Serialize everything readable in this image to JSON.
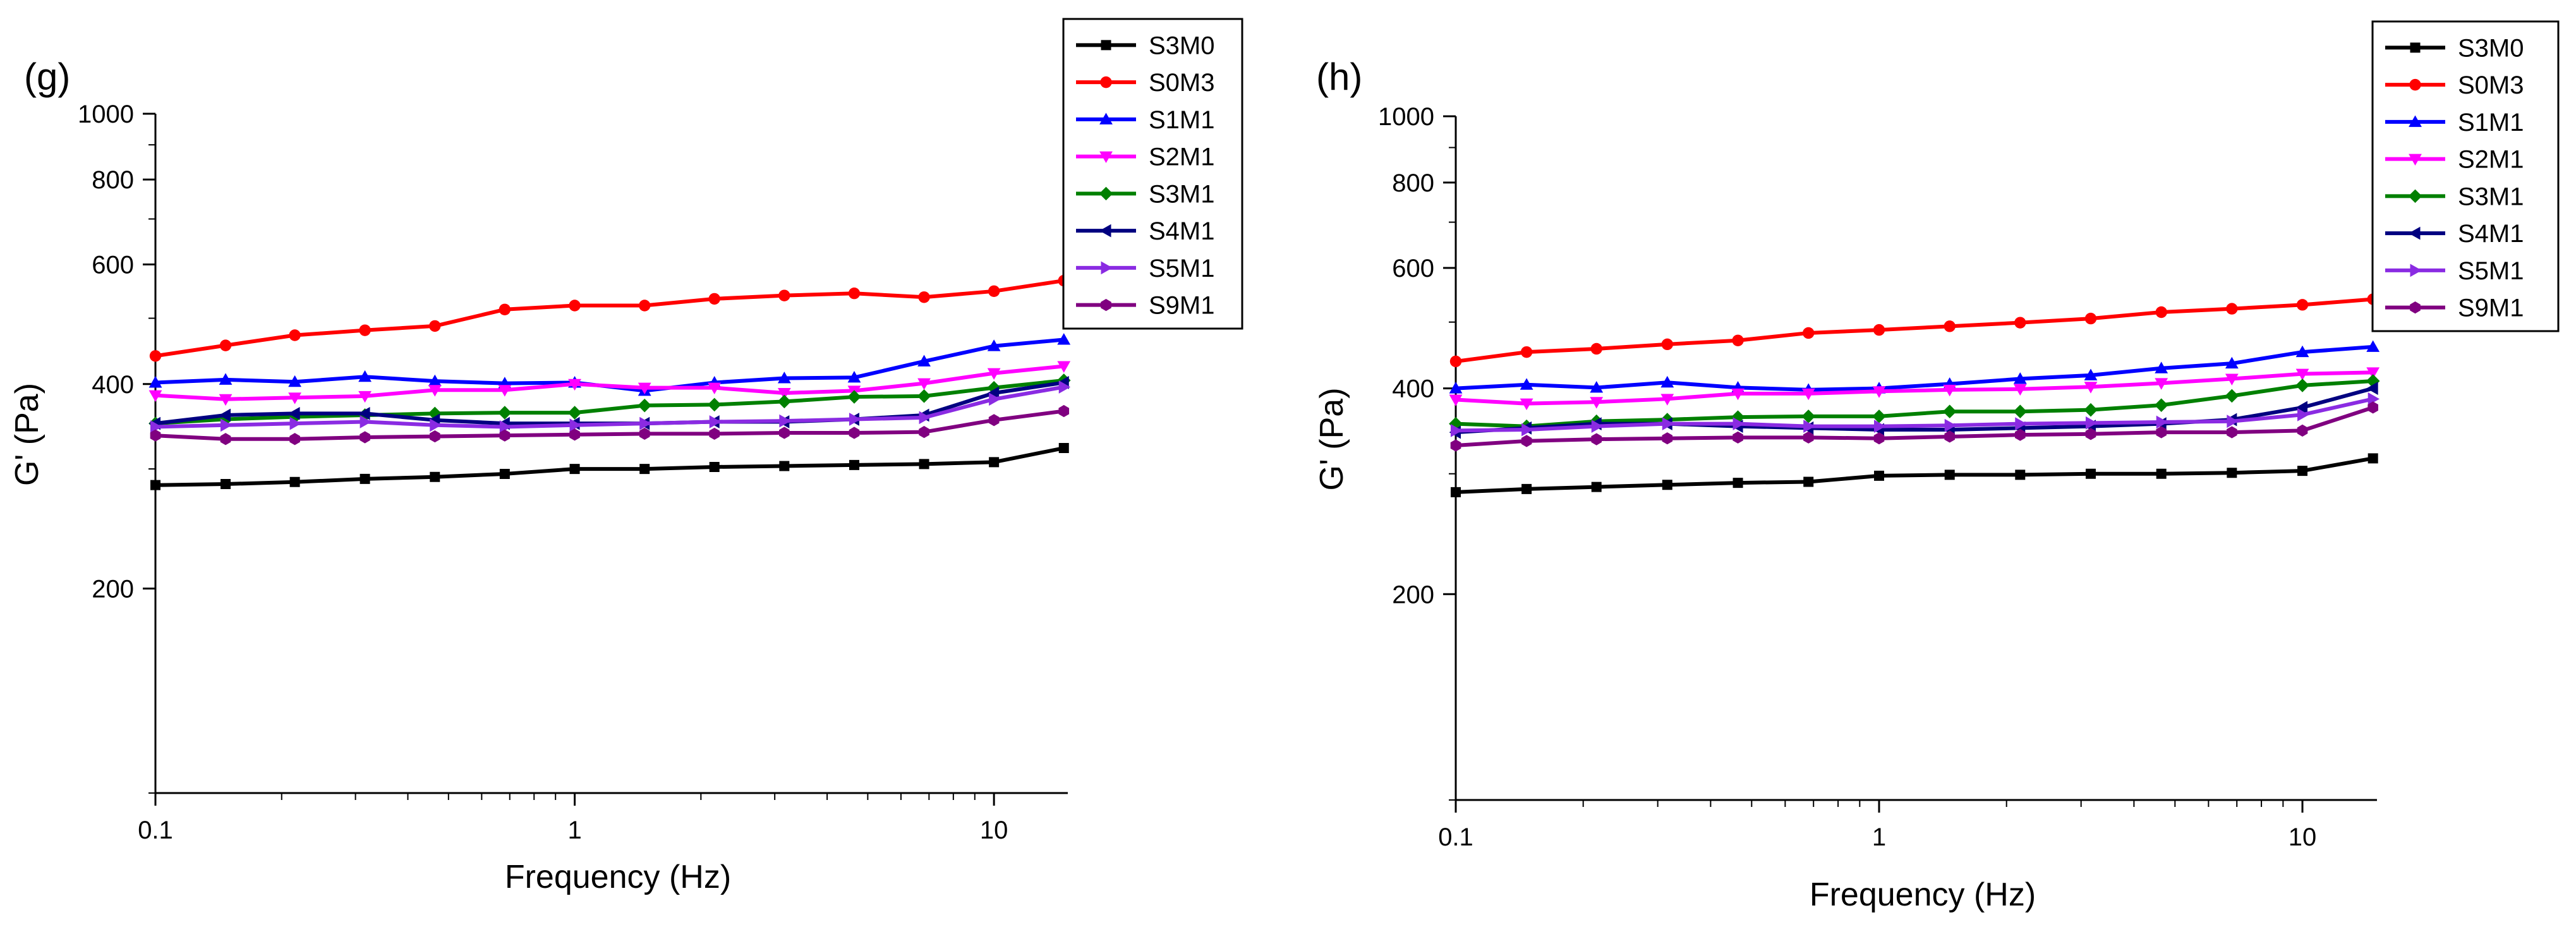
{
  "chart_data": [
    {
      "type": "line",
      "panel_label": "(g)",
      "xlabel": "Frequency (Hz)",
      "ylabel": "G' (Pa)",
      "xscale": "log",
      "yscale": "log",
      "xlim": [
        0.1,
        15
      ],
      "ylim": [
        100,
        1000
      ],
      "x_ticks": [
        {
          "value": 0.1,
          "label": "0.1"
        },
        {
          "value": 1,
          "label": "1"
        },
        {
          "value": 10,
          "label": "10"
        }
      ],
      "y_ticks": [
        {
          "value": 200,
          "label": "200"
        },
        {
          "value": 400,
          "label": "400"
        },
        {
          "value": 600,
          "label": "600"
        },
        {
          "value": 800,
          "label": "800"
        },
        {
          "value": 1000,
          "label": "1000"
        }
      ],
      "legend_position": "top-right",
      "x": [
        0.1,
        0.147,
        0.215,
        0.316,
        0.464,
        0.681,
        1.0,
        1.468,
        2.154,
        3.162,
        4.642,
        6.813,
        10.0,
        14.678
      ],
      "series": [
        {
          "name": "S3M0",
          "color": "#000000",
          "marker": "square",
          "values": [
            284,
            285,
            287,
            290,
            292,
            295,
            300,
            300,
            302,
            303,
            304,
            305,
            307,
            322
          ]
        },
        {
          "name": "S0M3",
          "color": "#ff0000",
          "marker": "circle",
          "values": [
            440,
            456,
            472,
            480,
            487,
            515,
            522,
            522,
            534,
            540,
            544,
            537,
            548,
            568
          ]
        },
        {
          "name": "S1M1",
          "color": "#0000ff",
          "marker": "triangle-up",
          "values": [
            402,
            406,
            403,
            410,
            404,
            401,
            402,
            391,
            402,
            408,
            409,
            432,
            455,
            465
          ]
        },
        {
          "name": "S2M1",
          "color": "#ff00ff",
          "marker": "triangle-down",
          "values": [
            385,
            380,
            382,
            384,
            392,
            392,
            400,
            395,
            395,
            388,
            391,
            401,
            415,
            425
          ]
        },
        {
          "name": "S3M1",
          "color": "#008000",
          "marker": "diamond",
          "values": [
            350,
            355,
            358,
            360,
            362,
            363,
            363,
            372,
            373,
            377,
            383,
            384,
            395,
            405
          ]
        },
        {
          "name": "S4M1",
          "color": "#000080",
          "marker": "triangle-left",
          "values": [
            350,
            360,
            362,
            362,
            354,
            350,
            350,
            350,
            352,
            352,
            355,
            360,
            388,
            402
          ]
        },
        {
          "name": "S5M1",
          "color": "#8a2be2",
          "marker": "triangle-right",
          "values": [
            346,
            348,
            350,
            352,
            348,
            346,
            348,
            350,
            352,
            353,
            355,
            357,
            380,
            396
          ]
        },
        {
          "name": "S9M1",
          "color": "#800080",
          "marker": "hexagon",
          "values": [
            336,
            332,
            332,
            334,
            335,
            336,
            337,
            338,
            338,
            339,
            339,
            340,
            354,
            365
          ]
        }
      ]
    },
    {
      "type": "line",
      "panel_label": "(h)",
      "xlabel": "Frequency (Hz)",
      "ylabel": "G' (Pa)",
      "xscale": "log",
      "yscale": "log",
      "xlim": [
        0.1,
        15
      ],
      "ylim": [
        100,
        1000
      ],
      "x_ticks": [
        {
          "value": 0.1,
          "label": "0.1"
        },
        {
          "value": 1,
          "label": "1"
        },
        {
          "value": 10,
          "label": "10"
        }
      ],
      "y_ticks": [
        {
          "value": 200,
          "label": "200"
        },
        {
          "value": 400,
          "label": "400"
        },
        {
          "value": 600,
          "label": "600"
        },
        {
          "value": 800,
          "label": "800"
        },
        {
          "value": 1000,
          "label": "1000"
        }
      ],
      "legend_position": "top-right",
      "x": [
        0.1,
        0.147,
        0.215,
        0.316,
        0.464,
        0.681,
        1.0,
        1.468,
        2.154,
        3.162,
        4.642,
        6.813,
        10.0,
        14.678
      ],
      "series": [
        {
          "name": "S3M0",
          "color": "#000000",
          "marker": "square",
          "values": [
            282,
            285,
            287,
            289,
            291,
            292,
            298,
            299,
            299,
            300,
            300,
            301,
            303,
            316
          ]
        },
        {
          "name": "S0M3",
          "color": "#ff0000",
          "marker": "circle",
          "values": [
            438,
            452,
            457,
            464,
            470,
            482,
            487,
            493,
            499,
            506,
            517,
            523,
            530,
            540
          ]
        },
        {
          "name": "S1M1",
          "color": "#0000ff",
          "marker": "triangle-up",
          "values": [
            400,
            405,
            401,
            408,
            401,
            398,
            400,
            406,
            413,
            418,
            428,
            435,
            452,
            460
          ]
        },
        {
          "name": "S2M1",
          "color": "#ff00ff",
          "marker": "triangle-down",
          "values": [
            385,
            380,
            382,
            386,
            393,
            393,
            396,
            398,
            399,
            402,
            407,
            413,
            420,
            422
          ]
        },
        {
          "name": "S3M1",
          "color": "#008000",
          "marker": "diamond",
          "values": [
            355,
            352,
            358,
            360,
            363,
            364,
            364,
            370,
            370,
            372,
            378,
            390,
            404,
            410
          ]
        },
        {
          "name": "S4M1",
          "color": "#000080",
          "marker": "triangle-left",
          "values": [
            345,
            350,
            355,
            355,
            352,
            350,
            348,
            348,
            350,
            352,
            355,
            360,
            375,
            400
          ]
        },
        {
          "name": "S5M1",
          "color": "#8a2be2",
          "marker": "triangle-right",
          "values": [
            347,
            348,
            352,
            355,
            355,
            352,
            352,
            353,
            355,
            356,
            357,
            358,
            366,
            386
          ]
        },
        {
          "name": "S9M1",
          "color": "#800080",
          "marker": "hexagon",
          "values": [
            330,
            335,
            337,
            338,
            339,
            339,
            338,
            340,
            342,
            343,
            345,
            345,
            347,
            375
          ]
        }
      ]
    }
  ]
}
